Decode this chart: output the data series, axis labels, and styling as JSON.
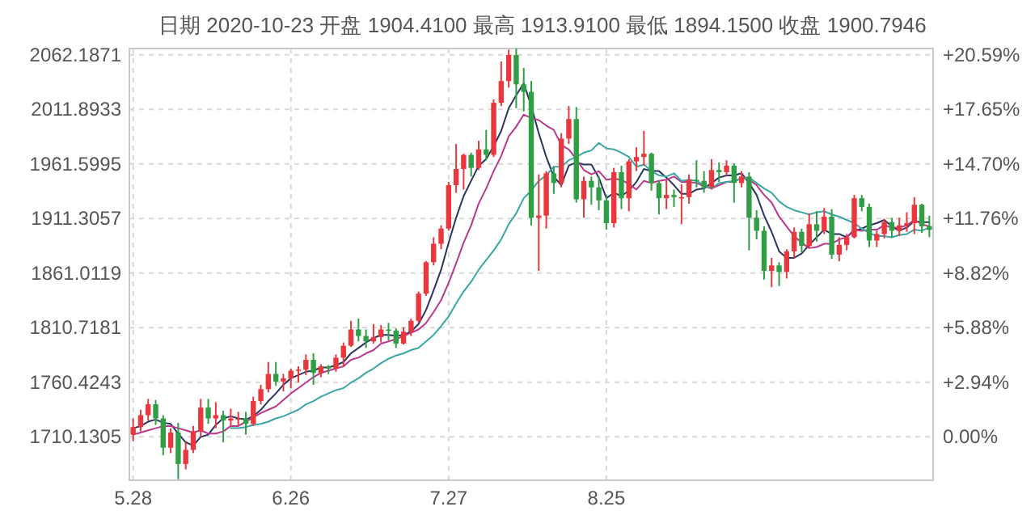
{
  "chart_data": {
    "type": "candlestick",
    "title": "日期 2020-10-23 开盘 1904.4100 最高 1913.9100 最低 1894.1500 收盘 1900.7946",
    "categories": [
      "5.28",
      null,
      null,
      null,
      null,
      null,
      null,
      null,
      null,
      null,
      null,
      null,
      null,
      null,
      null,
      null,
      null,
      null,
      null,
      null,
      null,
      "6.26",
      null,
      null,
      null,
      null,
      null,
      null,
      null,
      null,
      null,
      null,
      null,
      null,
      null,
      null,
      null,
      null,
      null,
      null,
      null,
      null,
      "7.27",
      null,
      null,
      null,
      null,
      null,
      null,
      null,
      null,
      null,
      null,
      null,
      null,
      null,
      null,
      null,
      null,
      null,
      null,
      null,
      null,
      "8.25",
      null,
      null,
      null,
      null,
      null,
      null,
      null,
      null,
      null,
      null,
      null,
      null,
      null,
      null,
      null,
      null,
      null,
      null,
      null,
      null,
      null,
      null,
      null,
      null,
      null,
      null,
      null,
      null,
      null,
      null,
      null,
      null,
      null,
      null,
      null,
      null,
      null,
      null,
      null,
      null,
      null,
      null,
      null
    ],
    "ohlc": [
      [
        1712,
        1727,
        1706,
        1719
      ],
      [
        1719,
        1735,
        1715,
        1730
      ],
      [
        1730,
        1745,
        1725,
        1740
      ],
      [
        1740,
        1744,
        1721,
        1727
      ],
      [
        1727,
        1730,
        1693,
        1700
      ],
      [
        1700,
        1718,
        1695,
        1714
      ],
      [
        1714,
        1723,
        1671,
        1685
      ],
      [
        1685,
        1705,
        1680,
        1698
      ],
      [
        1698,
        1720,
        1695,
        1715
      ],
      [
        1715,
        1745,
        1710,
        1737
      ],
      [
        1737,
        1745,
        1722,
        1727
      ],
      [
        1727,
        1742,
        1718,
        1730
      ],
      [
        1730,
        1734,
        1705,
        1725
      ],
      [
        1725,
        1736,
        1720,
        1727
      ],
      [
        1727,
        1733,
        1720,
        1727
      ],
      [
        1727,
        1733,
        1712,
        1722
      ],
      [
        1722,
        1747,
        1720,
        1743
      ],
      [
        1743,
        1758,
        1740,
        1754
      ],
      [
        1754,
        1779,
        1751,
        1768
      ],
      [
        1768,
        1779,
        1757,
        1761
      ],
      [
        1761,
        1768,
        1752,
        1764
      ],
      [
        1764,
        1773,
        1755,
        1771
      ],
      [
        1771,
        1775,
        1760,
        1772
      ],
      [
        1772,
        1786,
        1767,
        1781
      ],
      [
        1781,
        1787,
        1758,
        1769
      ],
      [
        1769,
        1777,
        1765,
        1775
      ],
      [
        1775,
        1776,
        1768,
        1773
      ],
      [
        1773,
        1786,
        1770,
        1783
      ],
      [
        1783,
        1797,
        1775,
        1794
      ],
      [
        1794,
        1817,
        1793,
        1809
      ],
      [
        1809,
        1819,
        1798,
        1803
      ],
      [
        1803,
        1809,
        1792,
        1798
      ],
      [
        1798,
        1814,
        1796,
        1802
      ],
      [
        1802,
        1813,
        1797,
        1809
      ],
      [
        1809,
        1815,
        1799,
        1808
      ],
      [
        1808,
        1810,
        1792,
        1796
      ],
      [
        1796,
        1811,
        1795,
        1807
      ],
      [
        1807,
        1819,
        1803,
        1817
      ],
      [
        1817,
        1844,
        1815,
        1842
      ],
      [
        1842,
        1872,
        1840,
        1871
      ],
      [
        1871,
        1894,
        1868,
        1888
      ],
      [
        1888,
        1905,
        1883,
        1902
      ],
      [
        1902,
        1945,
        1900,
        1942
      ],
      [
        1942,
        1980,
        1935,
        1957
      ],
      [
        1957,
        1971,
        1938,
        1970
      ],
      [
        1970,
        1972,
        1950,
        1958
      ],
      [
        1958,
        1983,
        1956,
        1975
      ],
      [
        1975,
        1993,
        1965,
        1970
      ],
      [
        1970,
        2021,
        1968,
        2018
      ],
      [
        2018,
        2056,
        2015,
        2038
      ],
      [
        2038,
        2067,
        2032,
        2062
      ],
      [
        2062,
        2068,
        2013,
        2035
      ],
      [
        2035,
        2050,
        2010,
        2028
      ],
      [
        2028,
        2038,
        1905,
        1912
      ],
      [
        1912,
        1952,
        1863,
        1914
      ],
      [
        1914,
        1955,
        1902,
        1953
      ],
      [
        1953,
        1959,
        1934,
        1944
      ],
      [
        1944,
        1990,
        1940,
        1985
      ],
      [
        1985,
        2015,
        1980,
        2003
      ],
      [
        2003,
        2014,
        1926,
        1929
      ],
      [
        1929,
        1950,
        1912,
        1946
      ],
      [
        1946,
        1950,
        1924,
        1940
      ],
      [
        1940,
        1950,
        1919,
        1928
      ],
      [
        1928,
        1933,
        1901,
        1907
      ],
      [
        1907,
        1958,
        1903,
        1954
      ],
      [
        1954,
        1960,
        1920,
        1930
      ],
      [
        1930,
        1966,
        1918,
        1964
      ],
      [
        1964,
        1977,
        1955,
        1968
      ],
      [
        1968,
        1992,
        1960,
        1971
      ],
      [
        1971,
        1972,
        1937,
        1944
      ],
      [
        1944,
        1946,
        1915,
        1930
      ],
      [
        1930,
        1947,
        1920,
        1933
      ],
      [
        1933,
        1938,
        1922,
        1931
      ],
      [
        1931,
        1943,
        1906,
        1931
      ],
      [
        1931,
        1952,
        1925,
        1947
      ],
      [
        1947,
        1965,
        1940,
        1946
      ],
      [
        1946,
        1955,
        1935,
        1940
      ],
      [
        1940,
        1966,
        1938,
        1956
      ],
      [
        1956,
        1963,
        1945,
        1954
      ],
      [
        1954,
        1965,
        1951,
        1960
      ],
      [
        1960,
        1962,
        1926,
        1944
      ],
      [
        1944,
        1955,
        1940,
        1950
      ],
      [
        1950,
        1954,
        1882,
        1912
      ],
      [
        1912,
        1919,
        1892,
        1900
      ],
      [
        1900,
        1904,
        1855,
        1863
      ],
      [
        1863,
        1875,
        1848,
        1868
      ],
      [
        1868,
        1871,
        1849,
        1862
      ],
      [
        1862,
        1883,
        1856,
        1881
      ],
      [
        1881,
        1903,
        1875,
        1899
      ],
      [
        1899,
        1902,
        1880,
        1886
      ],
      [
        1886,
        1916,
        1884,
        1906
      ],
      [
        1906,
        1918,
        1890,
        1900
      ],
      [
        1900,
        1921,
        1897,
        1913
      ],
      [
        1913,
        1920,
        1874,
        1878
      ],
      [
        1878,
        1894,
        1872,
        1887
      ],
      [
        1887,
        1897,
        1882,
        1894
      ],
      [
        1894,
        1933,
        1893,
        1930
      ],
      [
        1930,
        1933,
        1918,
        1922
      ],
      [
        1922,
        1925,
        1885,
        1891
      ],
      [
        1891,
        1900,
        1885,
        1897
      ],
      [
        1897,
        1911,
        1893,
        1908
      ],
      [
        1908,
        1912,
        1894,
        1900
      ],
      [
        1900,
        1912,
        1895,
        1905
      ],
      [
        1905,
        1917,
        1899,
        1907
      ],
      [
        1907,
        1931,
        1897,
        1924
      ],
      [
        1924,
        1925,
        1898,
        1904
      ],
      [
        1904.41,
        1913.91,
        1894.15,
        1900.7946
      ]
    ],
    "colors": [
      "#e8383d",
      "#e8383d",
      "#e8383d",
      "#2f9e44",
      "#2f9e44",
      "#e8383d",
      "#2f9e44",
      "#e8383d",
      "#e8383d",
      "#e8383d",
      "#2f9e44",
      "#e8383d",
      "#2f9e44",
      "#e8383d",
      "#e8383d",
      "#2f9e44",
      "#e8383d",
      "#e8383d",
      "#e8383d",
      "#2f9e44",
      "#e8383d",
      "#e8383d",
      "#e8383d",
      "#e8383d",
      "#2f9e44",
      "#e8383d",
      "#2f9e44",
      "#e8383d",
      "#e8383d",
      "#e8383d",
      "#2f9e44",
      "#2f9e44",
      "#e8383d",
      "#e8383d",
      "#2f9e44",
      "#2f9e44",
      "#e8383d",
      "#e8383d",
      "#e8383d",
      "#e8383d",
      "#e8383d",
      "#e8383d",
      "#e8383d",
      "#e8383d",
      "#e8383d",
      "#2f9e44",
      "#e8383d",
      "#2f9e44",
      "#e8383d",
      "#e8383d",
      "#e8383d",
      "#2f9e44",
      "#2f9e44",
      "#2f9e44",
      "#e8383d",
      "#e8383d",
      "#2f9e44",
      "#e8383d",
      "#e8383d",
      "#2f9e44",
      "#e8383d",
      "#2f9e44",
      "#2f9e44",
      "#2f9e44",
      "#e8383d",
      "#2f9e44",
      "#e8383d",
      "#e8383d",
      "#e8383d",
      "#2f9e44",
      "#2f9e44",
      "#e8383d",
      "#2f9e44",
      "#e8383d",
      "#e8383d",
      "#2f9e44",
      "#2f9e44",
      "#e8383d",
      "#2f9e44",
      "#e8383d",
      "#2f9e44",
      "#e8383d",
      "#2f9e44",
      "#2f9e44",
      "#2f9e44",
      "#e8383d",
      "#2f9e44",
      "#e8383d",
      "#e8383d",
      "#2f9e44",
      "#e8383d",
      "#2f9e44",
      "#e8383d",
      "#2f9e44",
      "#e8383d",
      "#e8383d",
      "#e8383d",
      "#2f9e44",
      "#2f9e44",
      "#e8383d",
      "#e8383d",
      "#2f9e44",
      "#e8383d",
      "#e8383d",
      "#e8383d",
      "#2f9e44",
      "#2f9e44"
    ],
    "series": [
      {
        "type": "line",
        "color": "#2a3560",
        "values": [
          1718,
          1720,
          1724,
          1726,
          1723,
          1722,
          1713,
          1705,
          1702,
          1710,
          1712,
          1721,
          1727,
          1729,
          1727,
          1726,
          1729,
          1735,
          1743,
          1750,
          1758,
          1764,
          1767,
          1770,
          1771,
          1774,
          1774,
          1776,
          1779,
          1787,
          1792,
          1797,
          1801,
          1804,
          1804,
          1803,
          1804,
          1807,
          1814,
          1827,
          1845,
          1864,
          1889,
          1912,
          1932,
          1946,
          1960,
          1966,
          1978,
          1992,
          2013,
          2025,
          2036,
          2015,
          1990,
          1968,
          1950,
          1942,
          1960,
          1963,
          1961,
          1961,
          1949,
          1930,
          1935,
          1932,
          1937,
          1945,
          1957,
          1955,
          1955,
          1949,
          1942,
          1934,
          1934,
          1938,
          1939,
          1944,
          1949,
          1951,
          1951,
          1953,
          1944,
          1933,
          1914,
          1899,
          1881,
          1875,
          1875,
          1879,
          1887,
          1894,
          1901,
          1897,
          1897,
          1894,
          1900,
          1902,
          1905,
          1907,
          1910,
          1904,
          1900,
          1903,
          1909,
          1908,
          1908
        ]
      },
      {
        "type": "line",
        "color": "#b8378f",
        "values": [
          1712,
          1714,
          1716,
          1718,
          1720,
          1720,
          1718,
          1716,
          1714,
          1716,
          1713,
          1713,
          1715,
          1720,
          1720,
          1724,
          1728,
          1732,
          1735,
          1738,
          1744,
          1750,
          1755,
          1760,
          1765,
          1769,
          1771,
          1773,
          1775,
          1781,
          1783,
          1787,
          1790,
          1796,
          1798,
          1800,
          1803,
          1806,
          1809,
          1815,
          1825,
          1836,
          1852,
          1870,
          1889,
          1905,
          1925,
          1939,
          1955,
          1969,
          1987,
          1996,
          2007,
          2004,
          2002,
          1997,
          1993,
          1979,
          1975,
          1966,
          1956,
          1952,
          1955,
          1947,
          1948,
          1947,
          1943,
          1938,
          1946,
          1944,
          1946,
          1947,
          1950,
          1945,
          1945,
          1944,
          1941,
          1939,
          1942,
          1945,
          1945,
          1949,
          1947,
          1942,
          1933,
          1926,
          1913,
          1904,
          1895,
          1889,
          1884,
          1885,
          1888,
          1888,
          1892,
          1894,
          1901,
          1900,
          1901,
          1901,
          1905,
          1903,
          1903,
          1905,
          1910,
          1906,
          1904
        ]
      },
      {
        "type": "line",
        "color": "#3aa6a6",
        "values": [
          null,
          null,
          null,
          null,
          null,
          null,
          null,
          null,
          null,
          null,
          null,
          null,
          null,
          1718,
          1718,
          1719,
          1721,
          1722,
          1724,
          1727,
          1729,
          1732,
          1735,
          1740,
          1743,
          1747,
          1750,
          1753,
          1755,
          1760,
          1764,
          1769,
          1773,
          1778,
          1782,
          1785,
          1787,
          1790,
          1792,
          1798,
          1804,
          1812,
          1821,
          1833,
          1844,
          1853,
          1864,
          1873,
          1882,
          1892,
          1906,
          1916,
          1930,
          1937,
          1946,
          1951,
          1959,
          1959,
          1965,
          1968,
          1972,
          1974,
          1981,
          1976,
          1975,
          1972,
          1968,
          1959,
          1961,
          1955,
          1951,
          1950,
          1953,
          1946,
          1947,
          1946,
          1942,
          1939,
          1944,
          1945,
          1946,
          1948,
          1949,
          1944,
          1939,
          1935,
          1927,
          1922,
          1919,
          1917,
          1915,
          1917,
          1918,
          1915,
          1913,
          1910,
          1907,
          1902,
          1898,
          1895,
          1895,
          1894,
          1896,
          1897,
          1901,
          1900,
          1903
        ]
      }
    ],
    "ylim": [
      1670,
      2068
    ],
    "yticks": [
      1710.1305,
      1760.4243,
      1810.7181,
      1861.0119,
      1911.3057,
      1961.5995,
      2011.8933,
      2062.1871
    ],
    "y2lim": [
      -2.347,
      20.926
    ],
    "y2ticks": [
      {
        "value": 0,
        "label": "0.00%"
      },
      {
        "value": 2.94,
        "label": "+2.94%"
      },
      {
        "value": 5.88,
        "label": "+5.88%"
      },
      {
        "value": 8.82,
        "label": "+8.82%"
      },
      {
        "value": 11.76,
        "label": "+11.76%"
      },
      {
        "value": 14.7,
        "label": "+14.70%"
      },
      {
        "value": 17.65,
        "label": "+17.65%"
      },
      {
        "value": 20.59,
        "label": "+20.59%"
      }
    ],
    "grid": true
  }
}
